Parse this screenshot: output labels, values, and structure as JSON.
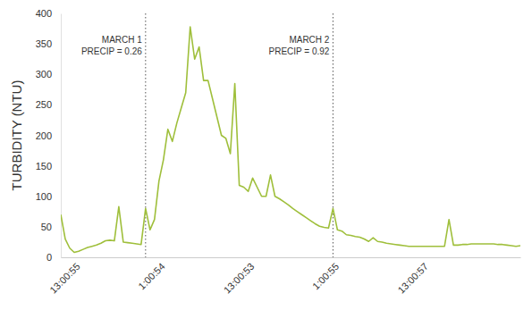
{
  "chart_data": {
    "type": "line",
    "y_label": "TURBIDITY (NTU)",
    "categories": [
      null,
      null,
      null,
      "13:00:55",
      null,
      null,
      null,
      null,
      null,
      null,
      null,
      null,
      null,
      null,
      null,
      null,
      null,
      null,
      null,
      null,
      null,
      null,
      "1:00:54",
      null,
      null,
      null,
      null,
      null,
      null,
      null,
      null,
      null,
      null,
      null,
      null,
      null,
      null,
      null,
      null,
      null,
      null,
      null,
      "13:00:53",
      null,
      null,
      null,
      null,
      null,
      null,
      null,
      null,
      null,
      null,
      null,
      null,
      null,
      null,
      null,
      null,
      null,
      null,
      "1:00:55",
      null,
      null,
      null,
      null,
      null,
      null,
      null,
      null,
      null,
      null,
      null,
      null,
      null,
      null,
      null,
      null,
      null,
      null,
      null,
      "13:00:57",
      null,
      null,
      null,
      null,
      null,
      null,
      null,
      null,
      null,
      null,
      null,
      null,
      null,
      null,
      null,
      null,
      null,
      null,
      null,
      null,
      null,
      null
    ],
    "values": [
      70,
      30,
      15,
      8,
      10,
      13,
      16,
      18,
      20,
      23,
      27,
      28,
      27,
      83,
      25,
      24,
      23,
      22,
      21,
      80,
      45,
      62,
      125,
      160,
      210,
      190,
      220,
      245,
      270,
      378,
      325,
      345,
      290,
      290,
      260,
      230,
      200,
      195,
      170,
      285,
      118,
      115,
      108,
      130,
      115,
      100,
      100,
      135,
      100,
      96,
      91,
      86,
      80,
      75,
      70,
      65,
      60,
      55,
      51,
      49,
      48,
      80,
      45,
      43,
      37,
      36,
      34,
      33,
      30,
      26,
      32,
      26,
      25,
      23,
      22,
      21,
      20,
      19,
      18,
      18,
      18,
      18,
      18,
      18,
      18,
      18,
      18,
      62,
      20,
      20,
      21,
      21,
      22,
      22,
      22,
      22,
      22,
      22,
      21,
      21,
      20,
      19,
      18,
      19
    ],
    "color": "#9fbf3b",
    "ylim": [
      0,
      400
    ],
    "yticks": [
      0,
      50,
      100,
      150,
      200,
      250,
      300,
      350,
      400
    ],
    "grid": false,
    "annotations": [
      {
        "x": 19,
        "text": [
          "MARCH 1",
          "PRECIP = 0.26"
        ]
      },
      {
        "x": 61,
        "text": [
          "MARCH 2",
          "PRECIP = 0.92"
        ]
      }
    ]
  }
}
